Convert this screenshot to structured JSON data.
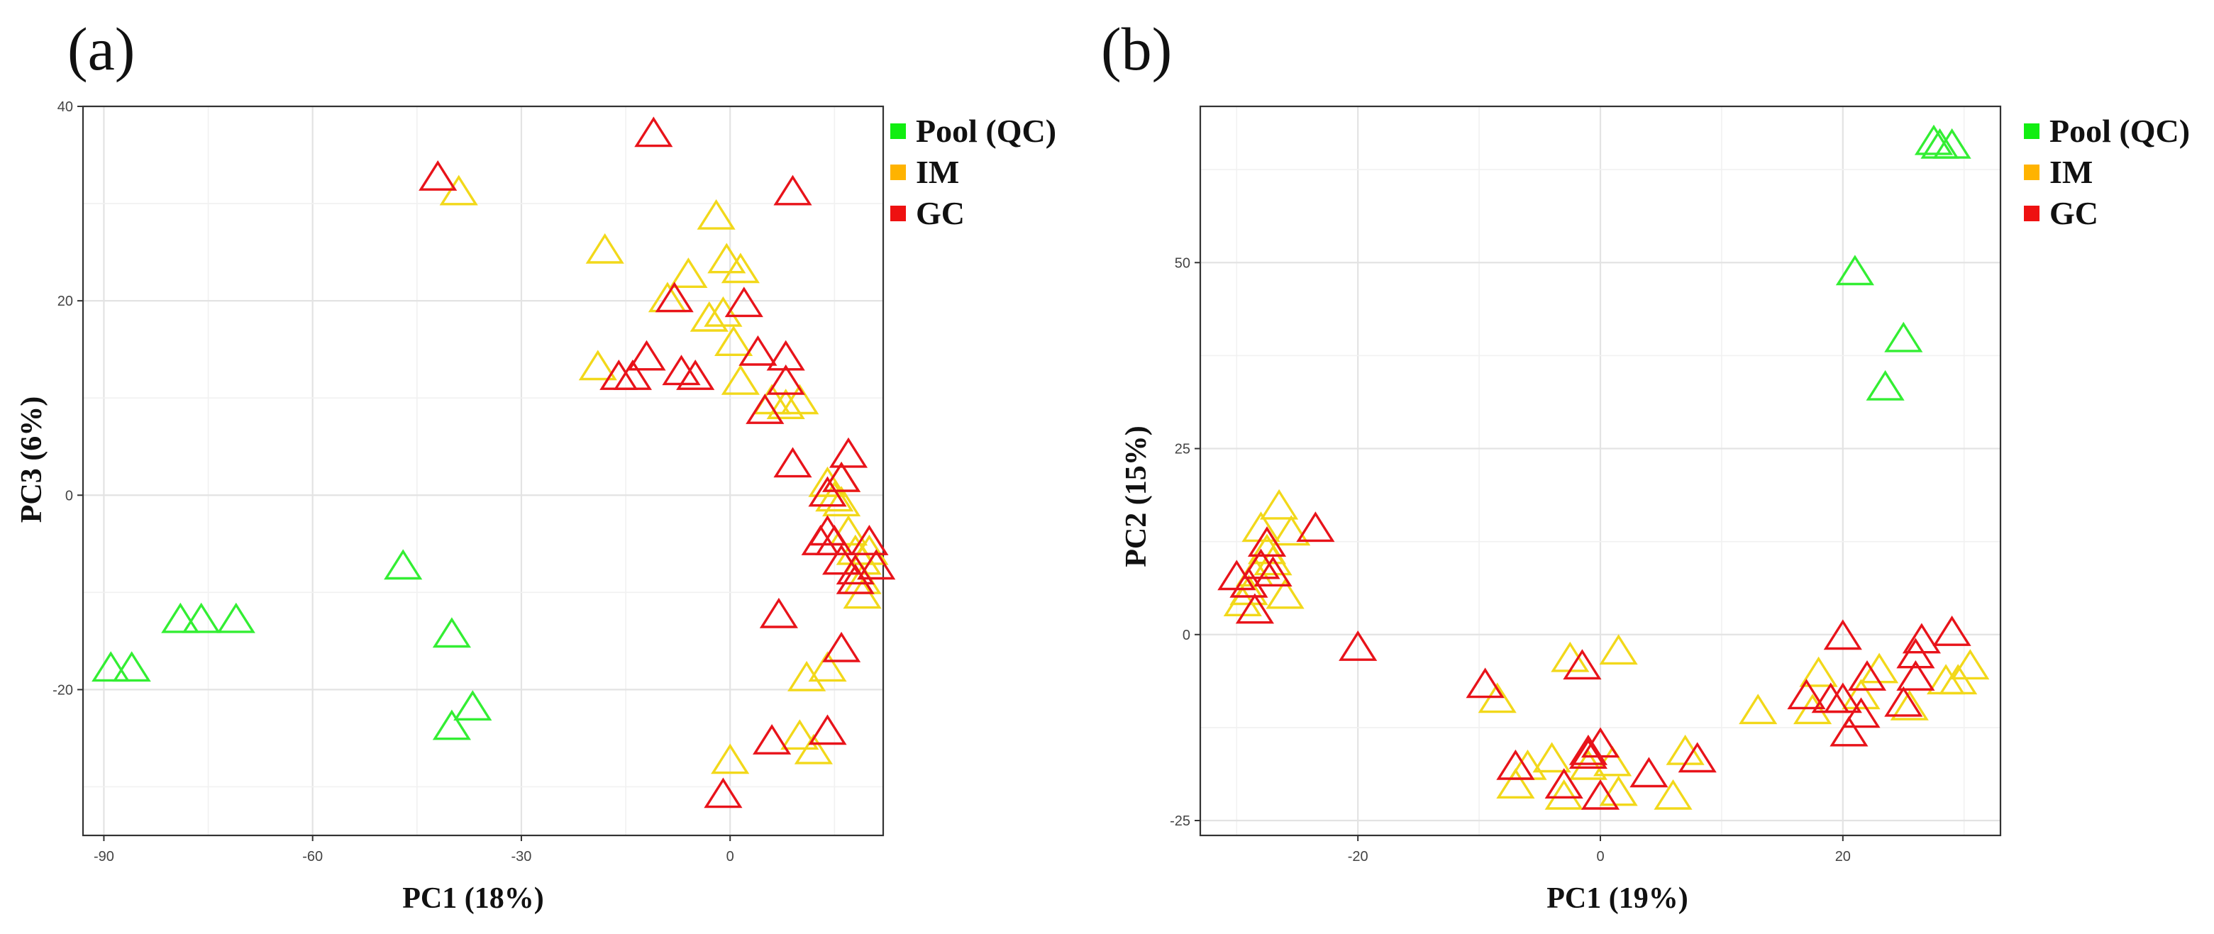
{
  "colors": {
    "Pool (QC)": "#33ee33",
    "IM": "#f2d81a",
    "GC": "#e8131a"
  },
  "legend_swatch_colors": {
    "Pool (QC)": "#11ee11",
    "IM": "#ffb300",
    "GC": "#ee1111"
  },
  "chart_data": [
    {
      "type": "scatter",
      "panel_label": "(a)",
      "title": "",
      "xlabel": "PC1 (18%)",
      "ylabel": "PC3 (6%)",
      "xlim": [
        -93,
        22
      ],
      "ylim": [
        -35,
        40
      ],
      "xticks": [
        -90,
        -60,
        -30,
        0
      ],
      "yticks": [
        -20,
        0,
        20,
        40
      ],
      "legend_position": "right",
      "marker": "open-triangle",
      "grid": true,
      "series": [
        {
          "name": "Pool (QC)",
          "points": [
            [
              -89,
              -18
            ],
            [
              -86,
              -18
            ],
            [
              -79,
              -13
            ],
            [
              -76,
              -13
            ],
            [
              -71,
              -13
            ],
            [
              -47,
              -7.5
            ],
            [
              -40,
              -14.5
            ],
            [
              -40,
              -24
            ],
            [
              -37,
              -22
            ]
          ]
        },
        {
          "name": "IM",
          "points": [
            [
              -39,
              31
            ],
            [
              -18,
              25
            ],
            [
              -19,
              13
            ],
            [
              -9,
              20
            ],
            [
              -6,
              22.5
            ],
            [
              -2,
              28.5
            ],
            [
              -3,
              18
            ],
            [
              -1,
              18.5
            ],
            [
              -0.5,
              24
            ],
            [
              0.5,
              15.5
            ],
            [
              1.5,
              23
            ],
            [
              1.5,
              11.5
            ],
            [
              6,
              9.5
            ],
            [
              8,
              9
            ],
            [
              10,
              9.5
            ],
            [
              14,
              1
            ],
            [
              15,
              -0.5
            ],
            [
              16,
              -1
            ],
            [
              16,
              1.5
            ],
            [
              17,
              -4
            ],
            [
              18,
              -6
            ],
            [
              19,
              -7
            ],
            [
              20,
              -6
            ],
            [
              19,
              -9
            ],
            [
              19,
              -10.5
            ],
            [
              11,
              -19
            ],
            [
              14,
              -18
            ],
            [
              10,
              -25
            ],
            [
              12,
              -26.5
            ],
            [
              0,
              -27.5
            ]
          ]
        },
        {
          "name": "GC",
          "points": [
            [
              -11,
              37
            ],
            [
              -42,
              32.5
            ],
            [
              9,
              31
            ],
            [
              -8,
              20
            ],
            [
              2,
              19.5
            ],
            [
              -12,
              14
            ],
            [
              -14,
              12
            ],
            [
              -16,
              12
            ],
            [
              -7,
              12.5
            ],
            [
              -5,
              12
            ],
            [
              4,
              14.5
            ],
            [
              8,
              14
            ],
            [
              8,
              11.5
            ],
            [
              5,
              8.5
            ],
            [
              9,
              3
            ],
            [
              17,
              4
            ],
            [
              16,
              1.5
            ],
            [
              14,
              0
            ],
            [
              15,
              -5
            ],
            [
              14,
              -4
            ],
            [
              13,
              -5
            ],
            [
              16,
              -7
            ],
            [
              18,
              -8
            ],
            [
              20,
              -5
            ],
            [
              21,
              -7.5
            ],
            [
              18,
              -9
            ],
            [
              7,
              -12.5
            ],
            [
              16,
              -16
            ],
            [
              14,
              -24.5
            ],
            [
              6,
              -25.5
            ],
            [
              -1,
              -31
            ]
          ]
        }
      ]
    },
    {
      "type": "scatter",
      "panel_label": "(b)",
      "title": "",
      "xlabel": "PC1 (19%)",
      "ylabel": "PC2 (15%)",
      "xlim": [
        -33,
        33
      ],
      "ylim": [
        -27,
        71
      ],
      "xticks": [
        -20,
        0,
        20
      ],
      "yticks": [
        -25,
        0,
        25,
        50
      ],
      "legend_position": "right",
      "marker": "open-triangle",
      "grid": true,
      "series": [
        {
          "name": "Pool (QC)",
          "points": [
            [
              27.5,
              66
            ],
            [
              28,
              65.5
            ],
            [
              29,
              65.5
            ],
            [
              21,
              48.5
            ],
            [
              25,
              39.5
            ],
            [
              23.5,
              33
            ]
          ]
        },
        {
          "name": "IM",
          "points": [
            [
              -26.5,
              17
            ],
            [
              -28,
              14
            ],
            [
              -25.5,
              13.5
            ],
            [
              -27.5,
              11
            ],
            [
              -28.5,
              8
            ],
            [
              -29,
              5.5
            ],
            [
              -29.5,
              4
            ],
            [
              -27,
              9.5
            ],
            [
              -26,
              5
            ],
            [
              -8.5,
              -9
            ],
            [
              -2.5,
              -3.5
            ],
            [
              1.5,
              -2.5
            ],
            [
              -6,
              -18
            ],
            [
              -4,
              -17
            ],
            [
              -7,
              -20.5
            ],
            [
              -3,
              -22
            ],
            [
              -1,
              -18
            ],
            [
              1,
              -17.5
            ],
            [
              1.5,
              -21.5
            ],
            [
              7,
              -16
            ],
            [
              6,
              -22
            ],
            [
              13,
              -10.5
            ],
            [
              17.5,
              -10.5
            ],
            [
              18,
              -5.5
            ],
            [
              21.5,
              -8.5
            ],
            [
              23,
              -5
            ],
            [
              25.5,
              -10
            ],
            [
              28.5,
              -6.5
            ],
            [
              29.5,
              -6.5
            ],
            [
              30.5,
              -4.5
            ]
          ]
        },
        {
          "name": "GC",
          "points": [
            [
              -30,
              7.5
            ],
            [
              -29,
              6.5
            ],
            [
              -28,
              9
            ],
            [
              -27.5,
              12
            ],
            [
              -27,
              8
            ],
            [
              -28.5,
              3
            ],
            [
              -23.5,
              14
            ],
            [
              -20,
              -2
            ],
            [
              -9.5,
              -7
            ],
            [
              -1.5,
              -4.5
            ],
            [
              -7,
              -18
            ],
            [
              -3,
              -20.5
            ],
            [
              -1,
              -16
            ],
            [
              -1,
              -16.5
            ],
            [
              0,
              -15
            ],
            [
              0,
              -22
            ],
            [
              4,
              -19
            ],
            [
              8,
              -17
            ],
            [
              17,
              -8.5
            ],
            [
              19,
              -9
            ],
            [
              20,
              -9
            ],
            [
              20,
              -0.5
            ],
            [
              22,
              -6
            ],
            [
              21.5,
              -11
            ],
            [
              20.5,
              -13.5
            ],
            [
              25,
              -9.5
            ],
            [
              26,
              -6
            ],
            [
              26,
              -3
            ],
            [
              26.5,
              -1
            ],
            [
              29,
              0
            ]
          ]
        }
      ]
    }
  ]
}
